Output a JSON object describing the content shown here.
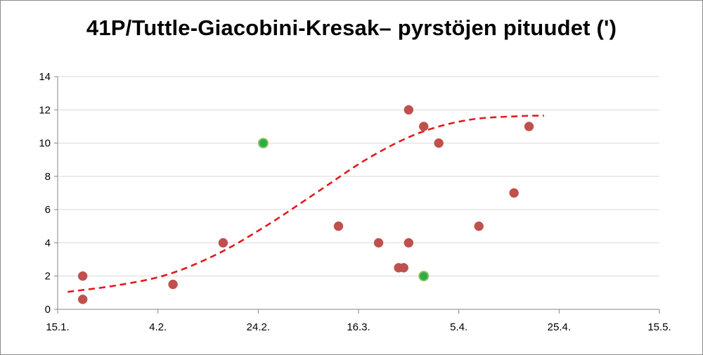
{
  "chart_data": {
    "type": "scatter",
    "title": "41P/Tuttle-Giacobini-Kresak– pyrstöjen pituudet (')",
    "xlabel": "",
    "ylabel": "",
    "x_ticks": [
      "15.1.",
      "4.2.",
      "24.2.",
      "16.3.",
      "5.4.",
      "25.4.",
      "15.5."
    ],
    "xlim": [
      "2017-01-15",
      "2017-05-15"
    ],
    "ylim": [
      0,
      14
    ],
    "y_ticks": [
      0,
      2,
      4,
      6,
      8,
      10,
      12,
      14
    ],
    "grid": "horizontal",
    "legend": "none",
    "colors": {
      "points": "#c0504d",
      "highlight_points": "#22b14c",
      "highlight_outline": "#9bbb59",
      "trend": "#e31a1c",
      "grid": "#d9d9d9",
      "axis": "#868686"
    },
    "series": [
      {
        "marker": "red-circle",
        "points": [
          {
            "x": "2017-01-20",
            "y": 2.0
          },
          {
            "x": "2017-01-20",
            "y": 0.6
          },
          {
            "x": "2017-02-07",
            "y": 1.5
          },
          {
            "x": "2017-02-17",
            "y": 4.0
          },
          {
            "x": "2017-03-12",
            "y": 5.0
          },
          {
            "x": "2017-03-20",
            "y": 4.0
          },
          {
            "x": "2017-03-24",
            "y": 2.5
          },
          {
            "x": "2017-03-25",
            "y": 2.5
          },
          {
            "x": "2017-03-26",
            "y": 12.0
          },
          {
            "x": "2017-03-26",
            "y": 4.0
          },
          {
            "x": "2017-03-29",
            "y": 11.0
          },
          {
            "x": "2017-04-01",
            "y": 10.0
          },
          {
            "x": "2017-04-09",
            "y": 5.0
          },
          {
            "x": "2017-04-16",
            "y": 7.0
          },
          {
            "x": "2017-04-19",
            "y": 11.0
          }
        ]
      },
      {
        "marker": "green-circle",
        "points": [
          {
            "x": "2017-02-25",
            "y": 10.0
          },
          {
            "x": "2017-03-29",
            "y": 2.0
          }
        ]
      }
    ],
    "trendline": {
      "style": "dashed",
      "points": [
        {
          "x": "2017-01-17",
          "y": 1.05
        },
        {
          "x": "2017-01-27",
          "y": 1.45
        },
        {
          "x": "2017-02-06",
          "y": 2.1
        },
        {
          "x": "2017-02-16",
          "y": 3.35
        },
        {
          "x": "2017-02-26",
          "y": 5.1
        },
        {
          "x": "2017-03-08",
          "y": 7.1
        },
        {
          "x": "2017-03-18",
          "y": 9.1
        },
        {
          "x": "2017-03-28",
          "y": 10.6
        },
        {
          "x": "2017-04-07",
          "y": 11.4
        },
        {
          "x": "2017-04-17",
          "y": 11.62
        },
        {
          "x": "2017-04-22",
          "y": 11.65
        }
      ]
    }
  }
}
